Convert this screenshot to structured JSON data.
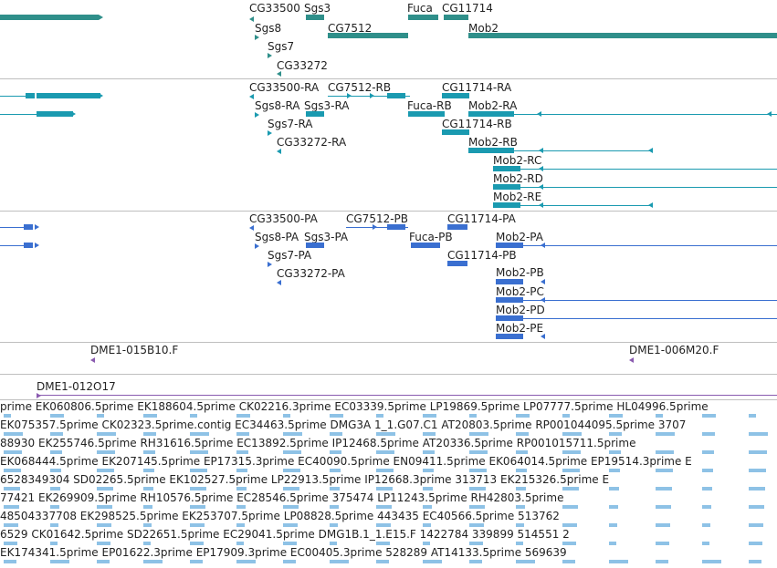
{
  "colors": {
    "gene": "#2f8f8a",
    "transcript": "#1a9ab0",
    "protein": "#3a6fd0",
    "bac": "#8a5bb0",
    "est": "#8ec2e6",
    "separator": "#bfbfbf"
  },
  "genes": [
    "CG33500",
    "Sgs3",
    "Fuca",
    "CG11714",
    "Sgs8",
    "CG7512",
    "Mob2",
    "Sgs7",
    "CG33272"
  ],
  "transcripts": [
    "CG33500-RA",
    "CG7512-RB",
    "CG11714-RA",
    "Sgs8-RA",
    "Sgs3-RA",
    "Fuca-RB",
    "Mob2-RA",
    "Sgs7-RA",
    "CG11714-RB",
    "CG33272-RA",
    "Mob2-RB",
    "Mob2-RC",
    "Mob2-RD",
    "Mob2-RE"
  ],
  "proteins": [
    "CG33500-PA",
    "CG7512-PB",
    "CG11714-PA",
    "Sgs8-PA",
    "Sgs3-PA",
    "Fuca-PB",
    "Mob2-PA",
    "Sgs7-PA",
    "CG11714-PB",
    "CG33272-PA",
    "Mob2-PB",
    "Mob2-PC",
    "Mob2-PD",
    "Mob2-PE"
  ],
  "bac_clones": [
    "DME1-015B10.F",
    "DME1-006M20.F",
    "DME1-012O17"
  ],
  "est_rows": [
    "prime EK060806.5prime EK188604.5prime CK02216.3prime EC03339.5prime LP19869.5prime LP07777.5prime HL04996.5prime",
    "EK075357.5prime CK02323.5prime.contig EC34463.5prime DMG3A 1_1.G07.C1 AT20803.5prime RP001044095.5prime 3707",
    "88930 EK255746.5prime RH31616.5prime EC13892.5prime IP12468.5prime AT20336.5prime RP001015711.5prime",
    "EK068444.5prime EK207145.5prime EP17315.3prime EC40090.5prime EN09411.5prime EK064014.5prime EP19514.3prime E",
    "6528349304 SD02265.5prime EK102527.5prime LP22913.5prime IP12668.3prime 313713 EK215326.5prime E",
    "77421 EK269909.5prime RH10576.5prime EC28546.5prime 375474 LP11243.5prime RH42803.5prime",
    "48504337708 EK298525.5prime EK253707.5prime LP08828.5prime 443435 EC40566.5prime 513762",
    "6529 CK01642.5prime SD22651.5prime EC29041.5prime DMG1B.1_1.E15.F 1422784 339899 514551 2",
    "EK174341.5prime EP01622.3prime EP17909.3prime EC00405.3prime 528289 AT14133.5prime 569639"
  ]
}
